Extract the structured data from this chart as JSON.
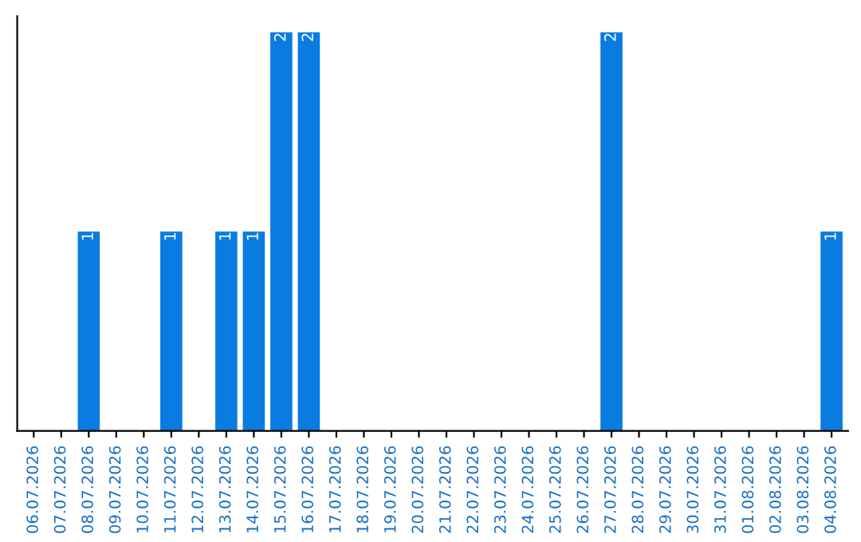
{
  "chart_data": {
    "type": "bar",
    "categories": [
      "06.07.2026",
      "07.07.2026",
      "08.07.2026",
      "09.07.2026",
      "10.07.2026",
      "11.07.2026",
      "12.07.2026",
      "13.07.2026",
      "14.07.2026",
      "15.07.2026",
      "16.07.2026",
      "17.07.2026",
      "18.07.2026",
      "19.07.2026",
      "20.07.2026",
      "21.07.2026",
      "22.07.2026",
      "23.07.2026",
      "24.07.2026",
      "25.07.2026",
      "26.07.2026",
      "27.07.2026",
      "28.07.2026",
      "29.07.2026",
      "30.07.2026",
      "31.07.2026",
      "01.08.2026",
      "02.08.2026",
      "03.08.2026",
      "04.08.2026"
    ],
    "values": [
      0,
      0,
      1,
      0,
      0,
      1,
      0,
      1,
      1,
      2,
      2,
      0,
      0,
      0,
      0,
      0,
      0,
      0,
      0,
      0,
      0,
      2,
      0,
      0,
      0,
      0,
      0,
      0,
      0,
      1
    ],
    "value_labels": [
      null,
      null,
      "1",
      null,
      null,
      "1",
      null,
      "1",
      "1",
      "2",
      "2",
      null,
      null,
      null,
      null,
      null,
      null,
      null,
      null,
      null,
      null,
      "2",
      null,
      null,
      null,
      null,
      null,
      null,
      null,
      "1"
    ],
    "color": "#0a7be0",
    "grid": false
  }
}
